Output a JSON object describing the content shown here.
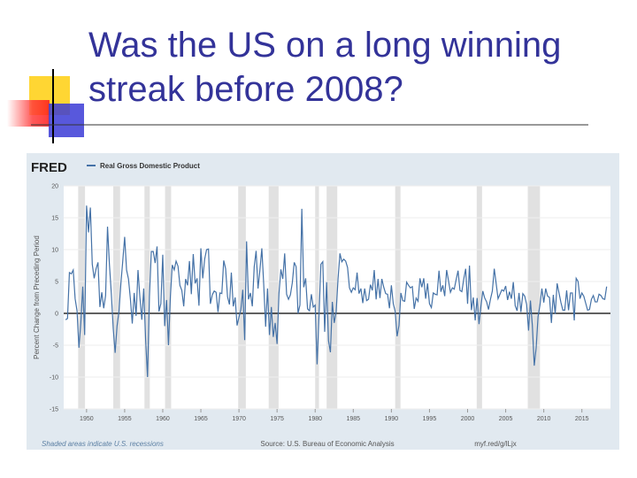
{
  "slide_title": "Was the US on a long winning streak before 2008?",
  "chart_data": {
    "type": "line",
    "logo": "FRED",
    "ylabel": "Percent Change from Preceding Period",
    "note": "Shaded areas indicate U.S. recessions",
    "source": "Source: U.S. Bureau of Economic Analysis",
    "link": "myf.red/g/lLjx",
    "xlim": [
      1947,
      2018.75
    ],
    "ylim": [
      -15,
      20
    ],
    "xticks": [
      1950,
      1955,
      1960,
      1965,
      1970,
      1975,
      1980,
      1985,
      1990,
      1995,
      2000,
      2005,
      2010,
      2015
    ],
    "yticks": [
      -15,
      -10,
      -5,
      0,
      5,
      10,
      15,
      20
    ],
    "grid": true,
    "recessions": [
      [
        1948.9,
        1949.8
      ],
      [
        1953.5,
        1954.4
      ],
      [
        1957.6,
        1958.3
      ],
      [
        1960.3,
        1961.1
      ],
      [
        1969.9,
        1970.9
      ],
      [
        1973.9,
        1975.2
      ],
      [
        1980.0,
        1980.5
      ],
      [
        1981.5,
        1982.9
      ],
      [
        1990.5,
        1991.2
      ],
      [
        2001.2,
        2001.9
      ],
      [
        2007.9,
        2009.5
      ]
    ],
    "x": [
      1947.25,
      1947.5,
      1947.75,
      1948,
      1948.25,
      1948.5,
      1948.75,
      1949,
      1949.25,
      1949.5,
      1949.75,
      1950,
      1950.25,
      1950.5,
      1950.75,
      1951,
      1951.25,
      1951.5,
      1951.75,
      1952,
      1952.25,
      1952.5,
      1952.75,
      1953,
      1953.25,
      1953.5,
      1953.75,
      1954,
      1954.25,
      1954.5,
      1954.75,
      1955,
      1955.25,
      1955.5,
      1955.75,
      1956,
      1956.25,
      1956.5,
      1956.75,
      1957,
      1957.25,
      1957.5,
      1957.75,
      1958,
      1958.25,
      1958.5,
      1958.75,
      1959,
      1959.25,
      1959.5,
      1959.75,
      1960,
      1960.25,
      1960.5,
      1960.75,
      1961,
      1961.25,
      1961.5,
      1961.75,
      1962,
      1962.25,
      1962.5,
      1962.75,
      1963,
      1963.25,
      1963.5,
      1963.75,
      1964,
      1964.25,
      1964.5,
      1964.75,
      1965,
      1965.25,
      1965.5,
      1965.75,
      1966,
      1966.25,
      1966.5,
      1966.75,
      1967,
      1967.25,
      1967.5,
      1967.75,
      1968,
      1968.25,
      1968.5,
      1968.75,
      1969,
      1969.25,
      1969.5,
      1969.75,
      1970,
      1970.25,
      1970.5,
      1970.75,
      1971,
      1971.25,
      1971.5,
      1971.75,
      1972,
      1972.25,
      1972.5,
      1972.75,
      1973,
      1973.25,
      1973.5,
      1973.75,
      1974,
      1974.25,
      1974.5,
      1974.75,
      1975,
      1975.25,
      1975.5,
      1975.75,
      1976,
      1976.25,
      1976.5,
      1976.75,
      1977,
      1977.25,
      1977.5,
      1977.75,
      1978,
      1978.25,
      1978.5,
      1978.75,
      1979,
      1979.25,
      1979.5,
      1979.75,
      1980,
      1980.25,
      1980.5,
      1980.75,
      1981,
      1981.25,
      1981.5,
      1981.75,
      1982,
      1982.25,
      1982.5,
      1982.75,
      1983,
      1983.25,
      1983.5,
      1983.75,
      1984,
      1984.25,
      1984.5,
      1984.75,
      1985,
      1985.25,
      1985.5,
      1985.75,
      1986,
      1986.25,
      1986.5,
      1986.75,
      1987,
      1987.25,
      1987.5,
      1987.75,
      1988,
      1988.25,
      1988.5,
      1988.75,
      1989,
      1989.25,
      1989.5,
      1989.75,
      1990,
      1990.25,
      1990.5,
      1990.75,
      1991,
      1991.25,
      1991.5,
      1991.75,
      1992,
      1992.25,
      1992.5,
      1992.75,
      1993,
      1993.25,
      1993.5,
      1993.75,
      1994,
      1994.25,
      1994.5,
      1994.75,
      1995,
      1995.25,
      1995.5,
      1995.75,
      1996,
      1996.25,
      1996.5,
      1996.75,
      1997,
      1997.25,
      1997.5,
      1997.75,
      1998,
      1998.25,
      1998.5,
      1998.75,
      1999,
      1999.25,
      1999.5,
      1999.75,
      2000,
      2000.25,
      2000.5,
      2000.75,
      2001,
      2001.25,
      2001.5,
      2001.75,
      2002,
      2002.25,
      2002.5,
      2002.75,
      2003,
      2003.25,
      2003.5,
      2003.75,
      2004,
      2004.25,
      2004.5,
      2004.75,
      2005,
      2005.25,
      2005.5,
      2005.75,
      2006,
      2006.25,
      2006.5,
      2006.75,
      2007,
      2007.25,
      2007.5,
      2007.75,
      2008,
      2008.25,
      2008.5,
      2008.75,
      2009,
      2009.25,
      2009.5,
      2009.75,
      2010,
      2010.25,
      2010.5,
      2010.75,
      2011,
      2011.25,
      2011.5,
      2011.75,
      2012,
      2012.25,
      2012.5,
      2012.75,
      2013,
      2013.25,
      2013.5,
      2013.75,
      2014,
      2014.25,
      2014.5,
      2014.75,
      2015,
      2015.25,
      2015.5,
      2015.75,
      2016,
      2016.25,
      2016.5,
      2016.75,
      2017,
      2017.25,
      2017.5,
      2017.75,
      2018,
      2018.25
    ],
    "series": [
      {
        "name": "Real Gross Domestic Product",
        "color": "#4572a7",
        "values": [
          -1.0,
          -0.8,
          6.4,
          6.2,
          6.8,
          2.3,
          0.4,
          -5.4,
          -1.4,
          4.2,
          -3.4,
          16.9,
          12.7,
          16.6,
          7.7,
          5.5,
          7.0,
          8.0,
          1.0,
          3.3,
          0.8,
          2.8,
          13.6,
          7.7,
          3.1,
          -2.4,
          -6.2,
          -2.0,
          0.3,
          4.6,
          8.2,
          12.0,
          6.8,
          5.4,
          2.3,
          -1.6,
          3.2,
          -0.4,
          6.8,
          2.5,
          -1.0,
          3.9,
          -4.1,
          -10.0,
          2.6,
          9.7,
          9.7,
          7.9,
          10.5,
          0.3,
          1.5,
          9.2,
          -2.0,
          2.1,
          -5.0,
          2.7,
          7.6,
          6.8,
          8.2,
          7.4,
          4.4,
          3.6,
          1.1,
          5.4,
          4.4,
          8.2,
          3.0,
          9.3,
          4.7,
          5.5,
          1.2,
          10.2,
          5.5,
          8.5,
          10.0,
          10.1,
          1.5,
          2.9,
          3.5,
          3.3,
          0.2,
          3.2,
          3.1,
          8.3,
          7.0,
          2.6,
          1.4,
          6.4,
          1.1,
          2.5,
          -1.9,
          -0.6,
          0.6,
          3.7,
          -4.2,
          11.3,
          2.2,
          3.2,
          1.1,
          7.3,
          9.8,
          3.9,
          6.8,
          10.2,
          4.5,
          -2.1,
          3.9,
          -3.4,
          1.0,
          -3.7,
          -1.5,
          -4.8,
          3.1,
          6.9,
          5.4,
          9.4,
          3.0,
          2.2,
          2.9,
          4.8,
          8.0,
          7.3,
          0.0,
          1.3,
          16.4,
          4.1,
          5.5,
          0.7,
          0.4,
          3.0,
          1.0,
          1.3,
          -8.0,
          -0.5,
          7.7,
          8.1,
          -2.9,
          4.9,
          -4.3,
          -6.1,
          1.8,
          -1.5,
          0.2,
          5.4,
          9.4,
          8.1,
          8.5,
          8.2,
          7.2,
          4.0,
          3.3,
          4.0,
          3.7,
          6.4,
          3.1,
          3.9,
          1.6,
          3.9,
          2.0,
          2.2,
          4.5,
          3.6,
          6.8,
          2.2,
          5.4,
          2.4,
          5.4,
          4.1,
          3.1,
          3.0,
          0.8,
          4.4,
          1.5,
          0.3,
          -3.6,
          -1.9,
          3.2,
          2.0,
          1.9,
          4.9,
          4.4,
          4.0,
          4.2,
          0.7,
          2.4,
          1.9,
          5.5,
          4.1,
          5.5,
          2.3,
          4.7,
          1.5,
          0.9,
          3.2,
          3.0,
          2.9,
          6.7,
          3.4,
          4.4,
          2.7,
          6.8,
          5.1,
          3.3,
          4.0,
          3.8,
          5.3,
          6.7,
          3.6,
          3.4,
          5.4,
          7.0,
          1.5,
          7.5,
          0.5,
          2.5,
          -1.1,
          2.4,
          -1.7,
          1.1,
          3.5,
          2.4,
          1.8,
          0.6,
          2.2,
          3.5,
          7.0,
          4.7,
          2.3,
          3.0,
          3.7,
          3.5,
          4.3,
          2.1,
          3.4,
          2.3,
          4.9,
          1.2,
          0.4,
          3.2,
          0.2,
          3.1,
          2.7,
          1.4,
          -2.7,
          2.0,
          -1.9,
          -8.2,
          -5.4,
          -0.5,
          1.3,
          3.9,
          1.7,
          3.9,
          2.7,
          2.5,
          -1.5,
          2.9,
          -0.1,
          4.7,
          3.2,
          1.7,
          0.5,
          0.5,
          3.6,
          0.5,
          3.2,
          3.2,
          -1.1,
          5.5,
          5.0,
          2.3,
          3.2,
          2.7,
          1.6,
          0.5,
          0.6,
          2.2,
          2.8,
          1.8,
          1.8,
          3.0,
          2.8,
          2.3,
          2.2,
          4.2
        ]
      }
    ]
  }
}
